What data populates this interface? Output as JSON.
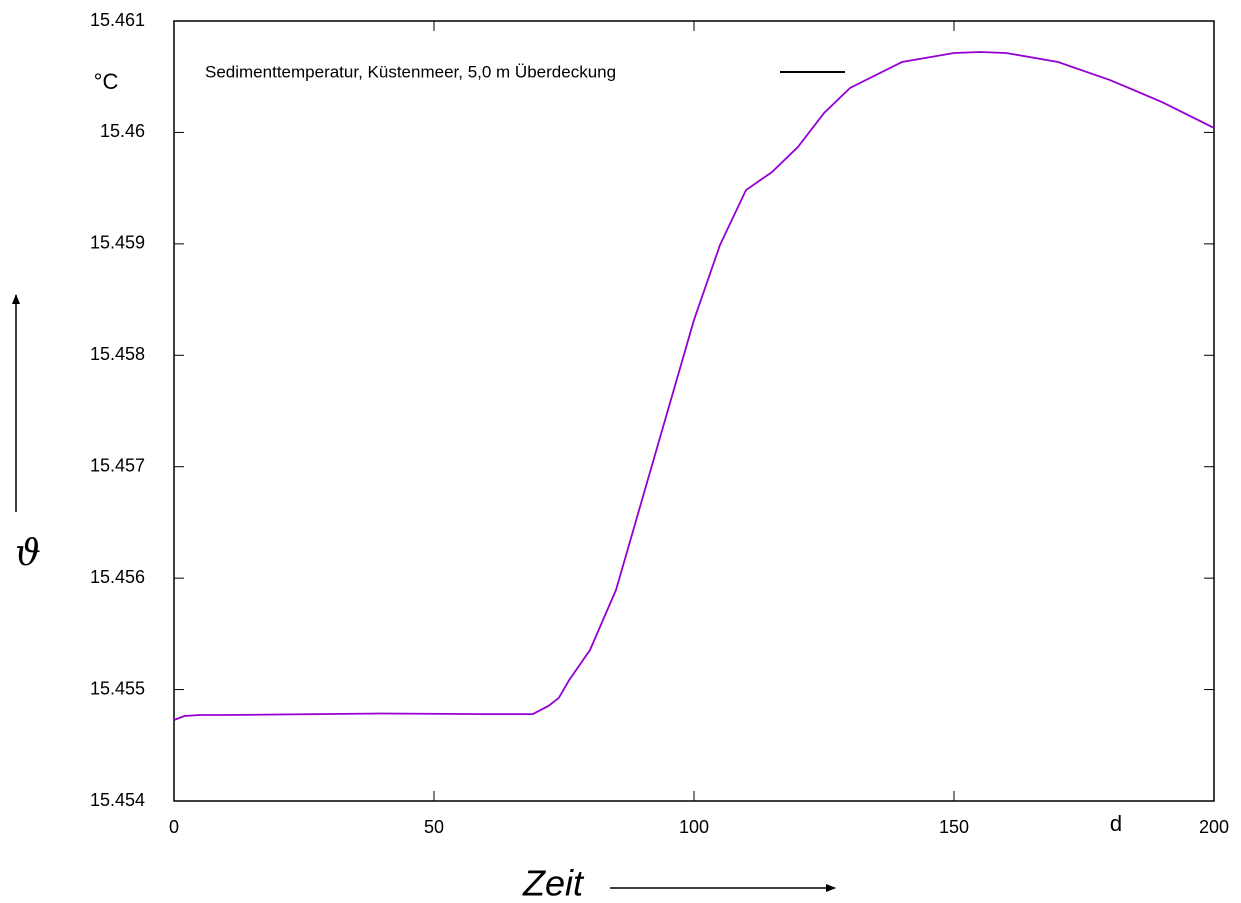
{
  "chart_data": {
    "type": "line",
    "x": [
      0,
      2,
      5,
      10,
      20,
      40,
      60,
      69,
      72,
      74,
      76,
      80,
      85,
      90,
      95,
      100,
      105,
      110,
      115,
      120,
      125,
      130,
      140,
      150,
      155,
      160,
      170,
      180,
      190,
      200
    ],
    "series": [
      {
        "name": "Sedimenttemperatur, Küstenmeer, 5,0 m Überdeckung",
        "color": "#9400d3",
        "values": [
          15.454727,
          15.454763,
          15.454772,
          15.454772,
          15.454776,
          15.454785,
          15.45478,
          15.45478,
          15.454853,
          15.454925,
          15.455086,
          15.455355,
          15.455894,
          15.456702,
          15.45751,
          15.458317,
          15.45899,
          15.459483,
          15.459645,
          15.45987,
          15.460174,
          15.460399,
          15.460632,
          15.460713,
          15.460722,
          15.460713,
          15.460632,
          15.46047,
          15.460273,
          15.46004
        ]
      }
    ],
    "legend_line_color": "#000000",
    "xlim": [
      0,
      200
    ],
    "xticks": [
      0,
      50,
      100,
      150,
      200
    ],
    "ylim": [
      15.454,
      15.461
    ],
    "yticks": [
      15.454,
      15.455,
      15.456,
      15.457,
      15.458,
      15.459,
      15.46,
      15.461
    ],
    "x_label": "Zeit",
    "y_label": "ϑ",
    "x_unit": "d",
    "y_unit": "°C"
  }
}
